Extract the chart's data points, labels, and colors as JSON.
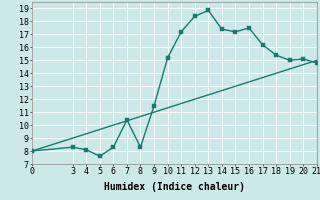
{
  "xlabel": "Humidex (Indice chaleur)",
  "background_color": "#cce8e8",
  "grid_color": "#ffffff",
  "line_color": "#1a7a6e",
  "xlim": [
    0,
    21
  ],
  "ylim": [
    7,
    19.5
  ],
  "xticks": [
    0,
    3,
    4,
    5,
    6,
    7,
    8,
    9,
    10,
    11,
    12,
    13,
    14,
    15,
    16,
    17,
    18,
    19,
    20,
    21
  ],
  "yticks": [
    7,
    8,
    9,
    10,
    11,
    12,
    13,
    14,
    15,
    16,
    17,
    18,
    19
  ],
  "curve1_x": [
    0,
    3,
    4,
    5,
    6,
    7,
    8,
    9,
    10,
    11,
    12,
    13,
    14,
    15,
    16,
    17,
    18,
    19,
    20,
    21
  ],
  "curve1_y": [
    8,
    8.3,
    8.1,
    7.6,
    8.3,
    10.4,
    8.3,
    11.5,
    15.2,
    17.2,
    18.4,
    18.85,
    17.4,
    17.2,
    17.5,
    16.2,
    15.4,
    15.0,
    15.1,
    14.8
  ],
  "curve2_x": [
    0,
    21
  ],
  "curve2_y": [
    8,
    15
  ],
  "marker_size": 2.5,
  "linewidth": 1.0,
  "font_size_label": 7,
  "font_size_tick": 6
}
